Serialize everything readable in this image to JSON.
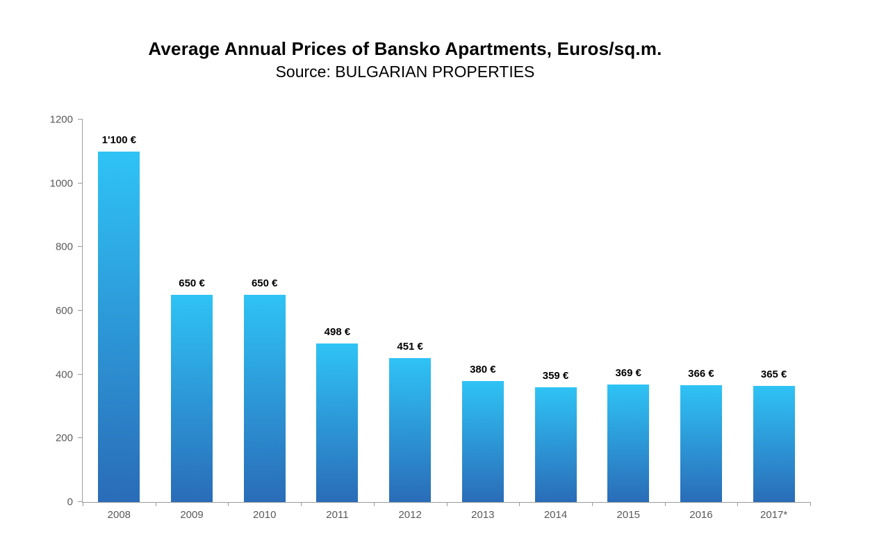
{
  "chart_data": {
    "type": "bar",
    "title": "Average Annual Prices of Bansko Apartments, Euros/sq.m.",
    "subtitle": "Source: BULGARIAN PROPERTIES",
    "categories": [
      "2008",
      "2009",
      "2010",
      "2011",
      "2012",
      "2013",
      "2014",
      "2015",
      "2016",
      "2017*"
    ],
    "values": [
      1100,
      650,
      650,
      498,
      451,
      380,
      359,
      369,
      366,
      365
    ],
    "value_labels": [
      "1'100 €",
      "650 €",
      "650 €",
      "498 €",
      "451 €",
      "380 €",
      "359 €",
      "369 €",
      "366 €",
      "365 €"
    ],
    "xlabel": "",
    "ylabel": "",
    "ylim": [
      0,
      1200
    ],
    "yticks": [
      0,
      200,
      400,
      600,
      800,
      1000,
      1200
    ],
    "grid": false,
    "legend": "none",
    "colors": {
      "bar_top": "#2fc3f5",
      "bar_bottom": "#2a6cb8",
      "axis": "#9a9a9a",
      "tick_label": "#595959",
      "value_label": "#000000"
    }
  }
}
